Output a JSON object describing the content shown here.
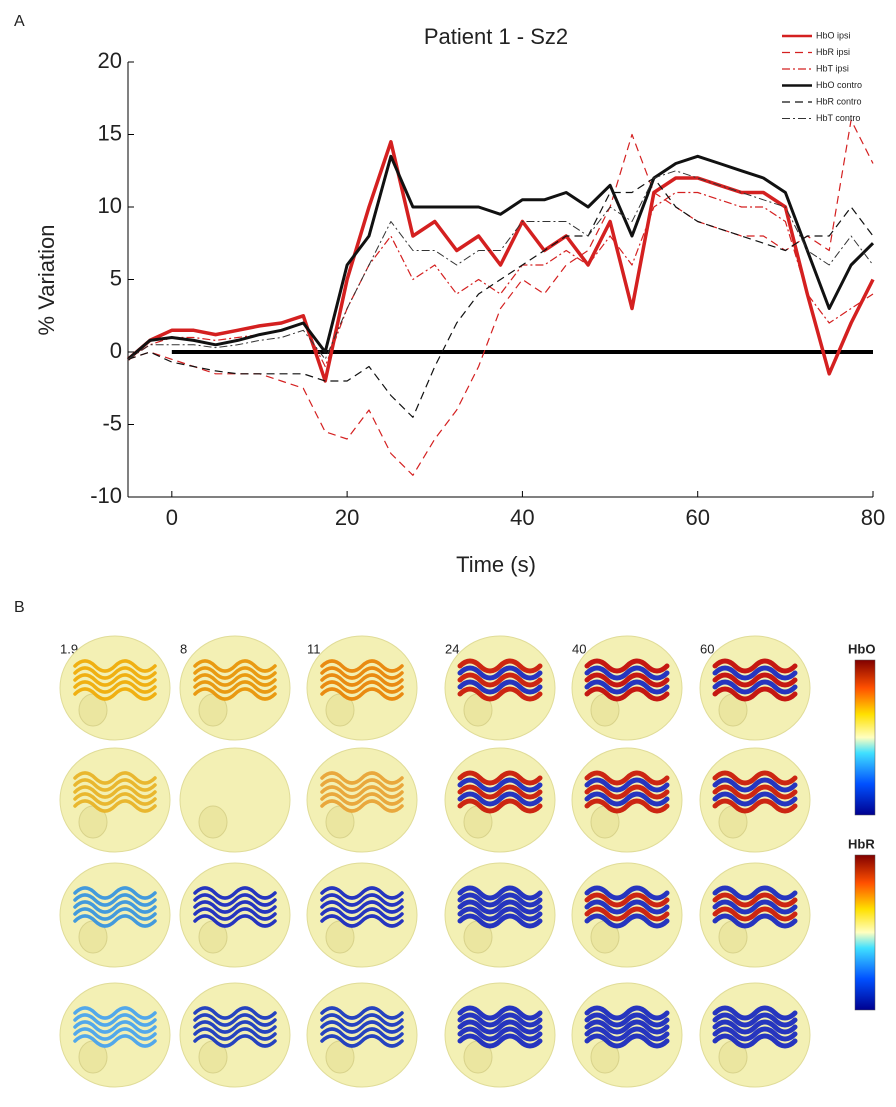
{
  "chart_data": {
    "type": "line",
    "title": "Patient 1 - Sz2",
    "panel_label": "A",
    "x_label": "Time (s)",
    "y_label": "% Variation",
    "xlim": [
      -5,
      80
    ],
    "ylim": [
      -10,
      20
    ],
    "xticks": [
      0,
      20,
      40,
      60,
      80
    ],
    "yticks": [
      -10,
      -5,
      0,
      5,
      10,
      15,
      20
    ],
    "legend_position": "upper right",
    "reference_line": {
      "y": 0,
      "x": [
        0,
        80
      ]
    },
    "x": [
      -5,
      -2.5,
      0,
      2.5,
      5,
      7.5,
      10,
      12.5,
      15,
      17.5,
      20,
      22.5,
      25,
      27.5,
      30,
      32.5,
      35,
      37.5,
      40,
      42.5,
      45,
      47.5,
      50,
      52.5,
      55,
      57.5,
      60,
      62.5,
      65,
      67.5,
      70,
      72.5,
      75,
      77.5,
      80
    ],
    "series": [
      {
        "name": "HbO ipsi",
        "color": "#d42020",
        "style": "solid",
        "width": 3.5,
        "values": [
          -0.5,
          0.8,
          1.5,
          1.5,
          1.2,
          1.5,
          1.8,
          2.0,
          2.5,
          -2.0,
          5,
          10,
          14.5,
          8,
          9,
          7,
          8,
          6,
          9,
          7,
          8,
          6,
          9,
          3,
          11,
          12,
          12,
          11.5,
          11,
          11,
          10,
          4,
          -1.5,
          2,
          5
        ]
      },
      {
        "name": "HbR ipsi",
        "color": "#d42020",
        "style": "dashed",
        "width": 1.2,
        "values": [
          -0.5,
          0,
          -0.5,
          -1,
          -1.5,
          -1.5,
          -1.5,
          -2,
          -2.5,
          -5.5,
          -6,
          -4,
          -7,
          -8.5,
          -6,
          -4,
          -1,
          3,
          5,
          4,
          6,
          7,
          10,
          15,
          11,
          10,
          9,
          8.5,
          8,
          8,
          7,
          8,
          7,
          16,
          13
        ]
      },
      {
        "name": "HbT ipsi",
        "color": "#d42020",
        "style": "dashdot",
        "width": 1.2,
        "values": [
          -0.5,
          0.5,
          1,
          1,
          0.8,
          1,
          1.2,
          1.5,
          2,
          -1,
          3,
          6,
          8,
          5,
          6,
          4,
          5,
          4,
          6,
          6,
          7,
          6,
          8,
          6,
          10,
          11,
          11,
          10.5,
          10,
          10,
          9,
          4,
          2,
          3,
          4
        ]
      },
      {
        "name": "HbO contro",
        "color": "#111111",
        "style": "solid",
        "width": 3,
        "values": [
          -0.5,
          0.8,
          1,
          0.8,
          0.5,
          0.8,
          1.2,
          1.5,
          2,
          0,
          6,
          8,
          13.5,
          10,
          10,
          10,
          10,
          9.5,
          10.5,
          10.5,
          11,
          10,
          11.5,
          8,
          12,
          13,
          13.5,
          13,
          12.5,
          12,
          11,
          7,
          3,
          6,
          7.5
        ]
      },
      {
        "name": "HbR contro",
        "color": "#111111",
        "style": "dashed",
        "width": 1.2,
        "values": [
          -0.5,
          0,
          -0.7,
          -1,
          -1.3,
          -1.5,
          -1.5,
          -1.5,
          -1.5,
          -2,
          -2,
          -1,
          -3,
          -4.5,
          -1,
          2,
          4,
          5,
          6,
          7,
          8,
          8,
          11,
          11,
          12,
          10,
          9,
          8.5,
          8,
          7.5,
          7,
          8,
          8,
          10,
          8
        ]
      },
      {
        "name": "HbT contro",
        "color": "#333333",
        "style": "dashdot",
        "width": 1,
        "values": [
          -0.5,
          0.5,
          0.5,
          0.5,
          0.3,
          0.5,
          0.8,
          1,
          1.5,
          -0.5,
          3,
          6,
          9,
          7,
          7,
          6,
          7,
          7,
          9,
          9,
          9,
          8,
          10,
          9,
          12,
          12.5,
          12,
          11.5,
          11,
          10.5,
          10,
          7,
          6,
          8,
          6
        ]
      }
    ]
  },
  "panel_b": {
    "panel_label": "B",
    "times": [
      "1.9",
      "8",
      "11",
      "24",
      "40",
      "60"
    ],
    "colorbar_titles": [
      "HbO",
      "HbR"
    ]
  }
}
